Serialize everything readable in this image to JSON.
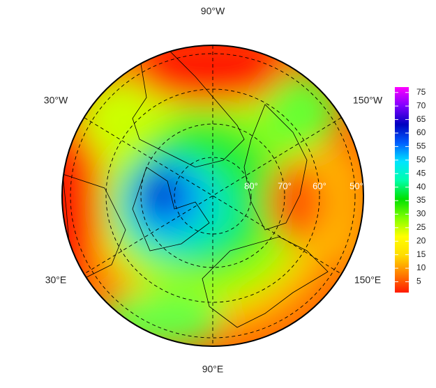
{
  "map": {
    "meridian_labels": [
      "90°W",
      "150°W",
      "150°E",
      "90°E",
      "30°E",
      "30°W"
    ],
    "latitude_labels": [
      "80°",
      "70°",
      "60°",
      "50°"
    ],
    "colorbar": {
      "lim": [
        1,
        77
      ],
      "ticks": [
        5,
        10,
        15,
        20,
        25,
        30,
        35,
        40,
        45,
        50,
        55,
        60,
        65,
        70,
        75
      ],
      "colors": [
        "#ff1a00",
        "#ff7f00",
        "#ffdd00",
        "#ffff00",
        "#7fff00",
        "#00e000",
        "#00ffaa",
        "#00e5ff",
        "#0060ff",
        "#0000c0",
        "#7f00ff",
        "#ff00ff"
      ]
    }
  }
}
